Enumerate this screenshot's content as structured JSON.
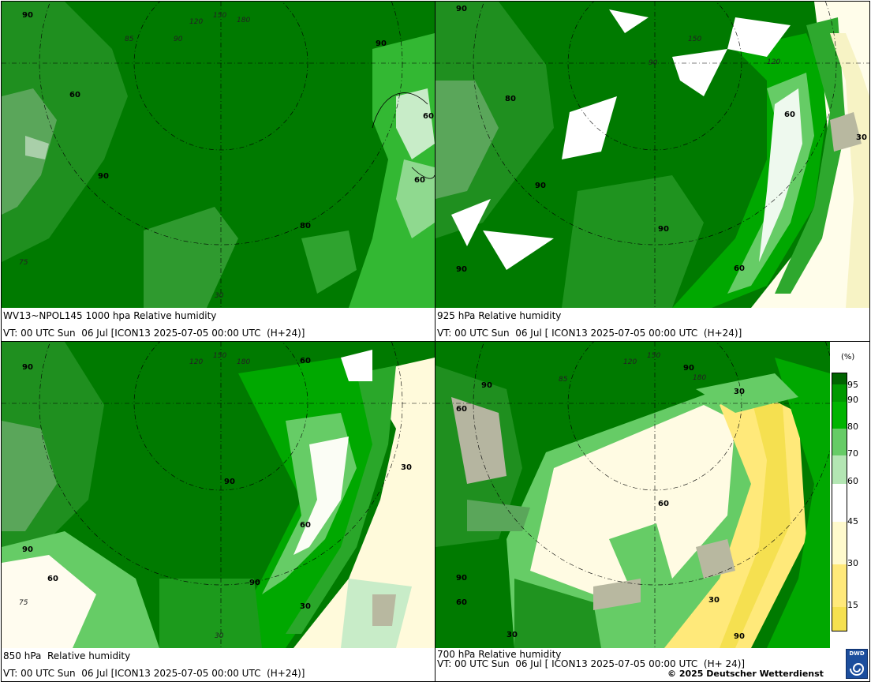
{
  "panels": [
    {
      "title": "WV13~NPOL145 1000 hpa Relative humidity",
      "valid": "VT: 00 UTC Sun  06 Jul [ICON13 2025-07-05 00:00 UTC  (H+24)]",
      "contour_labels": [
        "90",
        "90",
        "60",
        "90",
        "60",
        "60",
        "80"
      ]
    },
    {
      "title": "925 hPa Relative humidity",
      "valid": "VT: 00 UTC Sun  06 Jul [ ICON13 2025-07-05 00:00 UTC  (H+24)]",
      "contour_labels": [
        "90",
        "80",
        "60",
        "30",
        "90",
        "90",
        "60",
        "90"
      ]
    },
    {
      "title": "850 hPa  Relative humidity",
      "valid": "VT: 00 UTC Sun  06 Jul [ICON13 2025-07-05 00:00 UTC  (H+24)]",
      "contour_labels": [
        "90",
        "60",
        "90",
        "60",
        "30",
        "90",
        "60",
        "90",
        "30"
      ]
    },
    {
      "title": "700 hPa Relative humidity",
      "valid": "VT: 00 UTC Sun  06 Jul [ ICON13 2025-07-05 00:00 UTC  (H+ 24)]",
      "contour_labels": [
        "90",
        "60",
        "90",
        "30",
        "60",
        "90",
        "60",
        "30",
        "30",
        "90"
      ]
    }
  ],
  "grid_labels": [
    "120",
    "150",
    "180",
    "90",
    "85",
    "60",
    "30",
    "75"
  ],
  "legend": {
    "unit": "(%)",
    "ticks": [
      "95",
      "90",
      "80",
      "70",
      "60",
      "45",
      "30",
      "15"
    ],
    "colors": [
      "#006400",
      "#009900",
      "#00b400",
      "#66cc66",
      "#b3e6b3",
      "#ffffff",
      "#fffacd",
      "#ffe97a",
      "#f5e050"
    ]
  },
  "copyright": "© 2025 Deutscher Wetterdienst",
  "logo_text": "DWD"
}
